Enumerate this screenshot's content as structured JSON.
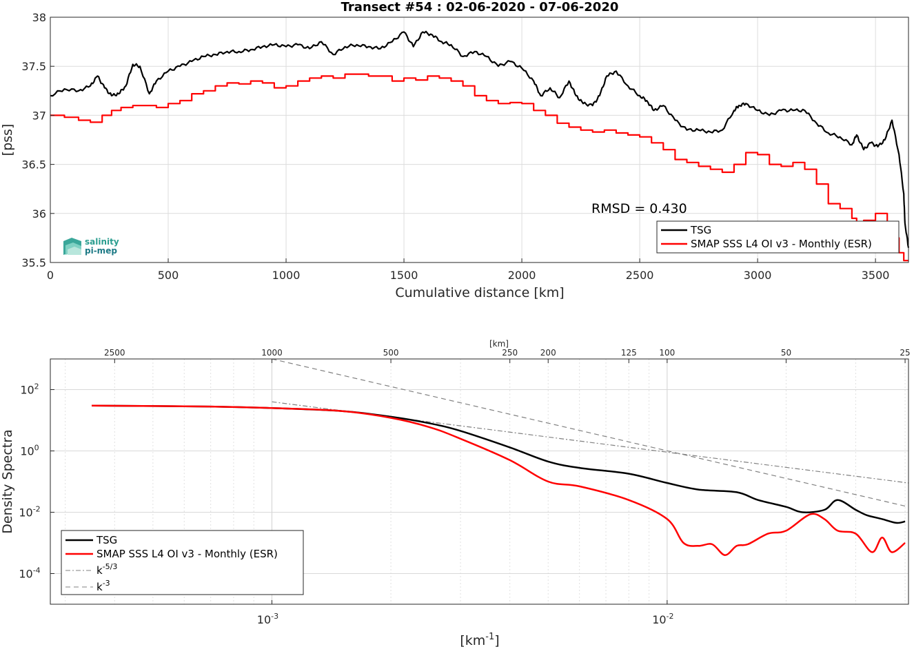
{
  "colors": {
    "tsg": "#000000",
    "smap": "#ff0000",
    "ref": "#808080",
    "grid": "#dcdcdc",
    "logo": "#2a9d8f"
  },
  "logo": {
    "line1": "salinity",
    "line2": "pi-mep"
  },
  "chart_data": [
    {
      "type": "line",
      "title": "Transect #54 : 02-06-2020 - 07-06-2020",
      "xlabel": "Cumulative distance [km]",
      "ylabel": "[pss]",
      "xlim": [
        0,
        3640
      ],
      "ylim": [
        35.5,
        38
      ],
      "xticks": [
        0,
        500,
        1000,
        1500,
        2000,
        2500,
        3000,
        3500
      ],
      "yticks": [
        35.5,
        36,
        36.5,
        37,
        37.5,
        38
      ],
      "grid": true,
      "legend_position": "bottom-right",
      "annotation": "RMSD = 0.430",
      "series": [
        {
          "name": "TSG",
          "color": "#000000",
          "x": [
            0,
            60,
            120,
            170,
            200,
            230,
            260,
            290,
            320,
            350,
            380,
            420,
            450,
            500,
            550,
            600,
            650,
            700,
            750,
            800,
            850,
            900,
            950,
            1000,
            1050,
            1100,
            1150,
            1200,
            1250,
            1300,
            1350,
            1400,
            1450,
            1500,
            1540,
            1580,
            1620,
            1660,
            1700,
            1750,
            1800,
            1850,
            1900,
            1950,
            2000,
            2050,
            2080,
            2120,
            2160,
            2200,
            2230,
            2260,
            2300,
            2330,
            2360,
            2400,
            2450,
            2500,
            2530,
            2560,
            2600,
            2650,
            2700,
            2750,
            2800,
            2850,
            2900,
            2920,
            2950,
            3000,
            3050,
            3100,
            3150,
            3200,
            3250,
            3300,
            3350,
            3400,
            3420,
            3450,
            3480,
            3510,
            3540,
            3570,
            3600,
            3620,
            3625,
            3640
          ],
          "y": [
            37.2,
            37.27,
            37.25,
            37.3,
            37.4,
            37.28,
            37.2,
            37.22,
            37.3,
            37.52,
            37.5,
            37.22,
            37.35,
            37.45,
            37.5,
            37.55,
            37.6,
            37.62,
            37.65,
            37.65,
            37.67,
            37.7,
            37.72,
            37.7,
            37.72,
            37.68,
            37.75,
            37.62,
            37.7,
            37.72,
            37.7,
            37.68,
            37.75,
            37.85,
            37.7,
            37.85,
            37.82,
            37.75,
            37.72,
            37.6,
            37.65,
            37.6,
            37.5,
            37.55,
            37.48,
            37.35,
            37.2,
            37.28,
            37.18,
            37.35,
            37.2,
            37.12,
            37.1,
            37.2,
            37.4,
            37.45,
            37.3,
            37.2,
            37.15,
            37.05,
            37.1,
            36.95,
            36.85,
            36.85,
            36.83,
            36.85,
            37.05,
            37.1,
            37.12,
            37.05,
            37.0,
            37.05,
            37.05,
            37.05,
            36.92,
            36.82,
            36.78,
            36.7,
            36.8,
            36.65,
            36.72,
            36.68,
            36.75,
            36.95,
            36.6,
            36.2,
            35.9,
            35.65
          ]
        },
        {
          "name": "SMAP SSS L4 OI v3 - Monthly (ESR)",
          "color": "#ff0000",
          "x": [
            0,
            60,
            120,
            170,
            220,
            260,
            300,
            350,
            400,
            450,
            500,
            550,
            600,
            650,
            700,
            750,
            800,
            850,
            900,
            950,
            1000,
            1050,
            1100,
            1150,
            1200,
            1250,
            1300,
            1350,
            1400,
            1450,
            1500,
            1550,
            1600,
            1650,
            1700,
            1750,
            1800,
            1850,
            1900,
            1950,
            2000,
            2050,
            2100,
            2150,
            2200,
            2250,
            2300,
            2350,
            2400,
            2450,
            2500,
            2550,
            2600,
            2650,
            2700,
            2750,
            2800,
            2850,
            2900,
            2950,
            3000,
            3050,
            3100,
            3150,
            3200,
            3250,
            3300,
            3350,
            3400,
            3420,
            3450,
            3500,
            3550,
            3580,
            3600,
            3620,
            3640
          ],
          "y": [
            37.0,
            36.98,
            36.95,
            36.93,
            37.0,
            37.05,
            37.08,
            37.1,
            37.1,
            37.08,
            37.12,
            37.15,
            37.22,
            37.25,
            37.3,
            37.33,
            37.32,
            37.35,
            37.33,
            37.28,
            37.3,
            37.35,
            37.38,
            37.4,
            37.38,
            37.42,
            37.42,
            37.4,
            37.4,
            37.35,
            37.38,
            37.36,
            37.4,
            37.38,
            37.35,
            37.3,
            37.2,
            37.15,
            37.12,
            37.13,
            37.12,
            37.05,
            37.0,
            36.92,
            36.88,
            36.85,
            36.83,
            36.85,
            36.82,
            36.8,
            36.78,
            36.72,
            36.65,
            36.55,
            36.52,
            36.48,
            36.45,
            36.42,
            36.5,
            36.62,
            36.6,
            36.5,
            36.48,
            36.52,
            36.45,
            36.3,
            36.1,
            36.05,
            35.95,
            35.9,
            35.93,
            36.0,
            35.85,
            35.75,
            35.6,
            35.52,
            35.52
          ]
        }
      ]
    },
    {
      "type": "line",
      "top_axis_label": "[km]",
      "xlabel": "[km-1]",
      "ylabel": "Density Spectra",
      "x_scale": "log",
      "y_scale": "log",
      "xlim": [
        0.000275,
        0.0408
      ],
      "ylim": [
        1e-05,
        1000
      ],
      "xticks_bottom": [
        "10-3",
        "10-2"
      ],
      "yticks": [
        "10-4",
        "10-2",
        "100",
        "102"
      ],
      "top_ticks_km": [
        2500,
        1000,
        500,
        250,
        200,
        125,
        100,
        50,
        25
      ],
      "grid": true,
      "legend_position": "bottom-left",
      "series": [
        {
          "name": "TSG",
          "color": "#000000",
          "x": [
            0.00035,
            0.0007,
            0.001,
            0.0015,
            0.002,
            0.0025,
            0.003,
            0.004,
            0.005,
            0.006,
            0.008,
            0.01,
            0.012,
            0.015,
            0.017,
            0.02,
            0.022,
            0.025,
            0.027,
            0.03,
            0.032,
            0.035,
            0.038,
            0.04
          ],
          "y": [
            30,
            28,
            25,
            20,
            13,
            8,
            4.5,
            1.3,
            0.45,
            0.28,
            0.18,
            0.09,
            0.055,
            0.045,
            0.025,
            0.015,
            0.01,
            0.012,
            0.025,
            0.012,
            0.008,
            0.006,
            0.0045,
            0.005
          ]
        },
        {
          "name": "SMAP SSS L4 OI v3 - Monthly (ESR)",
          "color": "#ff0000",
          "x": [
            0.00035,
            0.0007,
            0.001,
            0.0015,
            0.002,
            0.0025,
            0.003,
            0.004,
            0.005,
            0.006,
            0.008,
            0.01,
            0.011,
            0.012,
            0.013,
            0.014,
            0.015,
            0.016,
            0.018,
            0.02,
            0.023,
            0.025,
            0.027,
            0.03,
            0.033,
            0.035,
            0.037,
            0.04
          ],
          "y": [
            30,
            28,
            25,
            20,
            12,
            6,
            2.5,
            0.5,
            0.1,
            0.07,
            0.025,
            0.006,
            0.001,
            0.0008,
            0.0009,
            0.0004,
            0.0008,
            0.0009,
            0.002,
            0.0025,
            0.0085,
            0.006,
            0.0025,
            0.002,
            0.0005,
            0.0015,
            0.0005,
            0.001
          ]
        },
        {
          "name": "k-5/3",
          "color": "#808080",
          "dash": "7,3,2,3",
          "x": [
            0.001,
            0.0408
          ],
          "y": [
            40,
            0.09
          ]
        },
        {
          "name": "k-3",
          "color": "#808080",
          "dash": "7,5",
          "x": [
            0.001,
            0.0408
          ],
          "y": [
            1000,
            0.015
          ]
        }
      ]
    }
  ]
}
